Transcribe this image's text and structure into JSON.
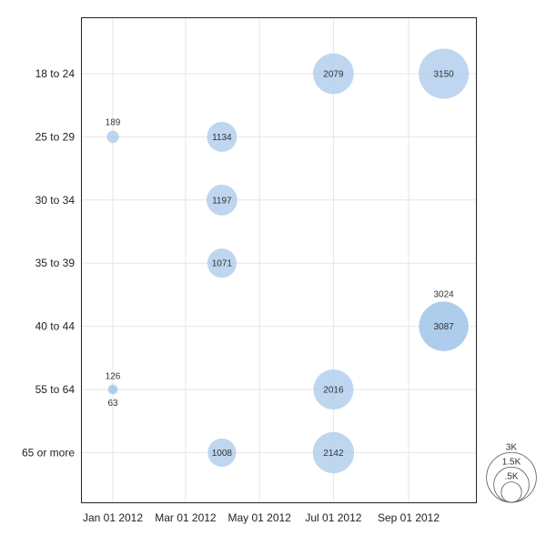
{
  "chart_data": {
    "type": "scatter",
    "subtype": "bubble",
    "title": "",
    "xlabel": "",
    "ylabel": "",
    "grid": true,
    "x_ticks": [
      "2012-01-01",
      "2012-03-01",
      "2012-05-01",
      "2012-07-01",
      "2012-09-01"
    ],
    "x_tick_labels": [
      "Jan 01 2012",
      "Mar 01 2012",
      "May 01 2012",
      "Jul 01 2012",
      "Sep 01 2012"
    ],
    "xlim": [
      "2011-12-08",
      "2012-10-21"
    ],
    "categories": [
      "18 to 24",
      "25 to 29",
      "30 to 34",
      "35 to 39",
      "40 to 44",
      "55 to 64",
      "65 or more"
    ],
    "series": [
      {
        "color": "#a8c8ea",
        "points": [
          {
            "x": "2012-07-01",
            "y": "18 to 24",
            "value": 2079
          },
          {
            "x": "2012-09-30",
            "y": "18 to 24",
            "value": 3150
          },
          {
            "x": "2012-01-01",
            "y": "25 to 29",
            "value": 189
          },
          {
            "x": "2012-03-31",
            "y": "25 to 29",
            "value": 1134
          },
          {
            "x": "2012-03-31",
            "y": "30 to 34",
            "value": 1197
          },
          {
            "x": "2012-03-31",
            "y": "35 to 39",
            "value": 1071
          },
          {
            "x": "2012-09-30",
            "y": "40 to 44",
            "value": 3087
          },
          {
            "x": "2012-09-30",
            "y": "40 to 44",
            "value": 3024
          },
          {
            "x": "2012-01-01",
            "y": "55 to 64",
            "value": 126
          },
          {
            "x": "2012-01-01",
            "y": "55 to 64",
            "value": 63
          },
          {
            "x": "2012-07-01",
            "y": "55 to 64",
            "value": 2016
          },
          {
            "x": "2012-03-31",
            "y": "65 or more",
            "value": 1008
          },
          {
            "x": "2012-07-01",
            "y": "65 or more",
            "value": 2142
          }
        ]
      }
    ],
    "size_legend": {
      "placement": "bottom-right",
      "values": [
        3000,
        1500,
        500
      ],
      "labels": [
        "3K",
        "1.5K",
        ".5K"
      ]
    }
  }
}
